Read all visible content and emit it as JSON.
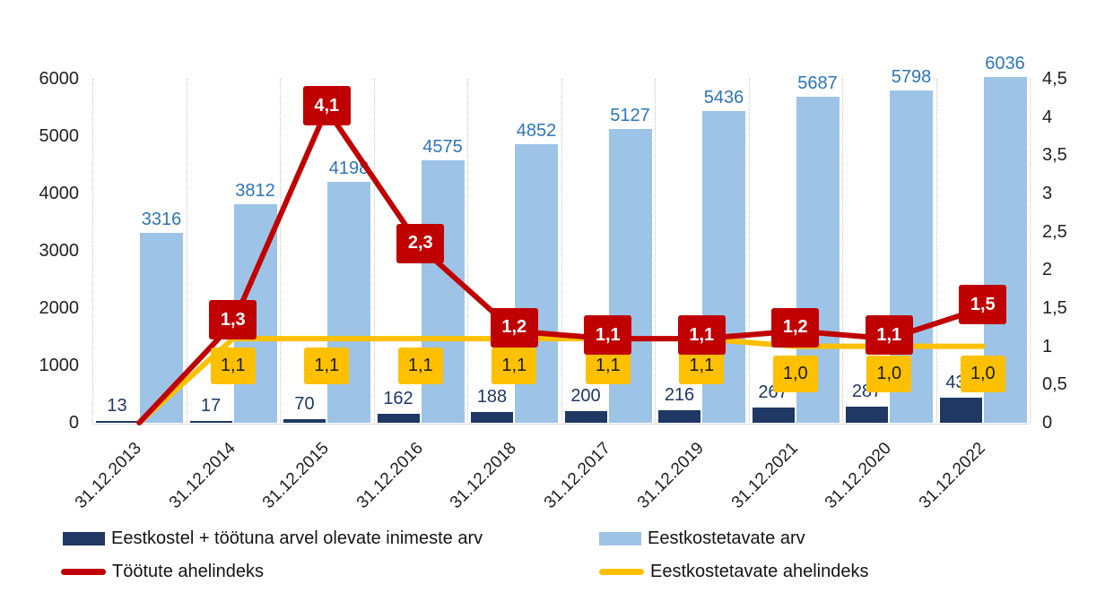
{
  "chart_data": {
    "type": "bar",
    "subtype": "combo-bar-line-dual-axis",
    "categories": [
      "31.12.2013",
      "31.12.2014",
      "31.12.2015",
      "31.12.2016",
      "31.12.2018",
      "31.12.2017",
      "31.12.2019",
      "31.12.2021",
      "31.12.2020",
      "31.12.2022"
    ],
    "left_axis": {
      "min": 0,
      "max": 6000,
      "tick_values": [
        6000,
        5000,
        4000,
        3000,
        2000,
        1000,
        0
      ],
      "tick_labels": [
        "6000",
        "5000",
        "4000",
        "3000",
        "2000",
        "1000",
        "0"
      ]
    },
    "right_axis": {
      "min": 0,
      "max": 4.5,
      "tick_values": [
        4.5,
        4,
        3.5,
        3,
        2.5,
        2,
        1.5,
        1,
        0.5,
        0
      ],
      "tick_labels": [
        "4,5",
        "4",
        "3,5",
        "3",
        "2,5",
        "2",
        "1,5",
        "1",
        "0,5",
        "0"
      ]
    },
    "grid": "vertical-dotted",
    "legend_position": "bottom",
    "series": [
      {
        "name": "Eestkostel + töötuna arvel olevate inimeste arv",
        "type": "bar",
        "axis": "left",
        "color": "#1F3864",
        "label_color": "#1F3864",
        "values": [
          13,
          17,
          70,
          162,
          188,
          200,
          216,
          267,
          287,
          438
        ],
        "labels": [
          "13",
          "17",
          "70",
          "162",
          "188",
          "200",
          "216",
          "267",
          "287",
          "438"
        ]
      },
      {
        "name": "Eestkostetavate arv",
        "type": "bar",
        "axis": "left",
        "color": "#9DC3E6",
        "label_color": "#2E75B6",
        "values": [
          3316,
          3812,
          4198,
          4575,
          4852,
          5127,
          5436,
          5687,
          5798,
          6036
        ],
        "labels": [
          "3316",
          "3812",
          "4198",
          "4575",
          "4852",
          "5127",
          "5436",
          "5687",
          "5798",
          "6036"
        ]
      },
      {
        "name": "Töötute ahelindeks",
        "type": "line",
        "axis": "right",
        "color": "#C00000",
        "text_color": "#FFFFFF",
        "values": [
          0,
          1.3,
          4.1,
          2.3,
          1.2,
          1.1,
          1.1,
          1.2,
          1.1,
          1.5
        ],
        "labels": [
          "",
          "1,3",
          "4,1",
          "2,3",
          "1,2",
          "1,1",
          "1,1",
          "1,2",
          "1,1",
          "1,5"
        ]
      },
      {
        "name": "Eestkostetavate ahelindeks",
        "type": "line",
        "axis": "right",
        "color": "#FFC000",
        "text_color": "#1A1A1A",
        "values": [
          0,
          1.1,
          1.1,
          1.1,
          1.1,
          1.1,
          1.1,
          1.0,
          1.0,
          1.0
        ],
        "labels": [
          "",
          "1,1",
          "1,1",
          "1,1",
          "1,1",
          "1,1",
          "1,1",
          "1,0",
          "1,0",
          "1,0"
        ]
      }
    ]
  }
}
